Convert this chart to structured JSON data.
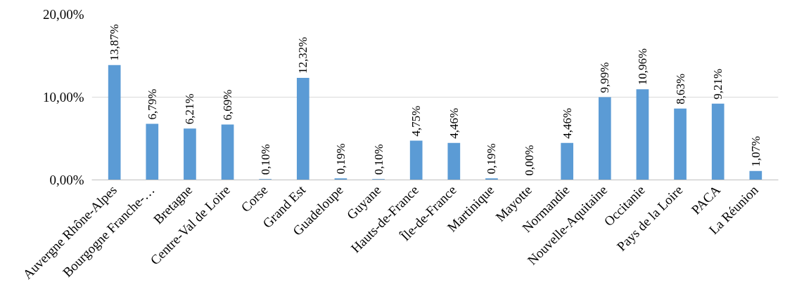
{
  "chart_data": {
    "type": "bar",
    "categories": [
      "Auvergne Rhône-Alpes",
      "Bourgogne Franche-…",
      "Bretagne",
      "Centre-Val de Loire",
      "Corse",
      "Grand Est",
      "Guadeloupe",
      "Guyane",
      "Hauts-de-France",
      "Île-de-France",
      "Martinique",
      "Mayotte",
      "Normandie",
      "Nouvelle-Aquitaine",
      "Occitanie",
      "Pays de la Loire",
      "PACA",
      "La Réunion"
    ],
    "values": [
      13.87,
      6.79,
      6.21,
      6.69,
      0.1,
      12.32,
      0.19,
      0.1,
      4.75,
      4.46,
      0.19,
      0.0,
      4.46,
      9.99,
      10.96,
      8.63,
      9.21,
      1.07
    ],
    "value_labels": [
      "13,87%",
      "6,79%",
      "6,21%",
      "6,69%",
      "0,10%",
      "12,32%",
      "0,19%",
      "0,10%",
      "4,75%",
      "4,46%",
      "0,19%",
      "0,00%",
      "4,46%",
      "9,99%",
      "10,96%",
      "8,63%",
      "9,21%",
      "1,07%"
    ],
    "color": "#5b9bd5",
    "ylim": [
      0,
      20
    ],
    "yticks": [
      {
        "value": 0,
        "label": "0,00%"
      },
      {
        "value": 10,
        "label": "10,00%"
      },
      {
        "value": 20,
        "label": "20,00%"
      }
    ],
    "grid": "y"
  }
}
